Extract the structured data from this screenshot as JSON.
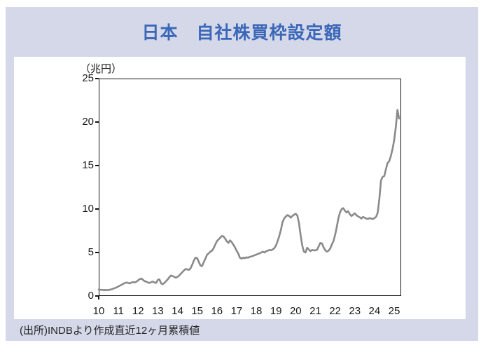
{
  "header": {
    "title": "日本　自社株買枠設定額"
  },
  "footer": {
    "source": "(出所)INDBより作成直近12ヶ月累積値"
  },
  "colors": {
    "panel_bg": "#d5d8e9",
    "title_text": "#3a67b8",
    "line": "#8a8a8a",
    "plot_border": "#141414",
    "axis_text": "#1a1a1a"
  },
  "chart_data": {
    "type": "line",
    "title": "日本　自社株買枠設定額",
    "unit_label": "（兆円）",
    "xlabel": "",
    "ylabel": "兆円",
    "ylim": [
      0,
      25
    ],
    "yticks": [
      0,
      5,
      10,
      15,
      20,
      25
    ],
    "xtick_labels": [
      "10",
      "11",
      "12",
      "13",
      "14",
      "15",
      "16",
      "17",
      "18",
      "19",
      "20",
      "21",
      "22",
      "23",
      "24",
      "25"
    ],
    "x_start": "2010-01",
    "x_end": "2025-04",
    "frequency": "monthly",
    "grid": false,
    "legend": "none",
    "line_color": "#8a8a8a",
    "series": [
      {
        "name": "自社株買枠設定額（直近12ヶ月累積値）",
        "values": [
          0.75,
          0.72,
          0.7,
          0.68,
          0.7,
          0.67,
          0.7,
          0.73,
          0.78,
          0.85,
          0.92,
          1.0,
          1.1,
          1.2,
          1.3,
          1.4,
          1.5,
          1.55,
          1.5,
          1.45,
          1.55,
          1.6,
          1.55,
          1.65,
          1.8,
          1.95,
          2.0,
          1.85,
          1.7,
          1.65,
          1.55,
          1.5,
          1.6,
          1.65,
          1.55,
          1.5,
          1.85,
          1.9,
          1.45,
          1.35,
          1.5,
          1.7,
          1.9,
          2.15,
          2.35,
          2.3,
          2.2,
          2.1,
          2.2,
          2.35,
          2.55,
          2.75,
          2.95,
          3.1,
          3.05,
          3.0,
          3.2,
          3.6,
          4.1,
          4.4,
          4.35,
          3.9,
          3.5,
          3.45,
          3.9,
          4.3,
          4.75,
          4.9,
          5.1,
          5.2,
          5.5,
          5.9,
          6.3,
          6.5,
          6.7,
          6.9,
          6.85,
          6.6,
          6.3,
          6.1,
          6.4,
          6.2,
          5.9,
          5.6,
          5.2,
          4.9,
          4.4,
          4.3,
          4.4,
          4.35,
          4.45,
          4.4,
          4.5,
          4.55,
          4.6,
          4.7,
          4.75,
          4.85,
          4.9,
          5.0,
          5.1,
          5.0,
          5.15,
          5.2,
          5.3,
          5.25,
          5.35,
          5.5,
          5.8,
          6.3,
          6.9,
          7.6,
          8.5,
          8.9,
          9.15,
          9.3,
          9.2,
          9.0,
          9.2,
          9.35,
          9.45,
          9.25,
          8.4,
          7.0,
          5.8,
          5.1,
          5.0,
          5.55,
          5.35,
          5.15,
          5.3,
          5.25,
          5.25,
          5.3,
          5.7,
          6.1,
          6.05,
          5.6,
          5.25,
          5.1,
          5.2,
          5.45,
          5.9,
          6.3,
          7.0,
          7.9,
          8.9,
          9.6,
          10.0,
          10.1,
          9.8,
          9.6,
          9.75,
          9.4,
          9.2,
          9.35,
          9.5,
          9.3,
          9.15,
          9.05,
          8.9,
          9.1,
          9.0,
          8.9,
          8.85,
          8.95,
          8.9,
          8.85,
          8.95,
          9.1,
          9.6,
          11.2,
          13.3,
          13.7,
          13.8,
          14.6,
          15.3,
          15.5,
          16.1,
          16.9,
          17.9,
          19.4,
          21.4,
          20.4
        ]
      }
    ]
  }
}
